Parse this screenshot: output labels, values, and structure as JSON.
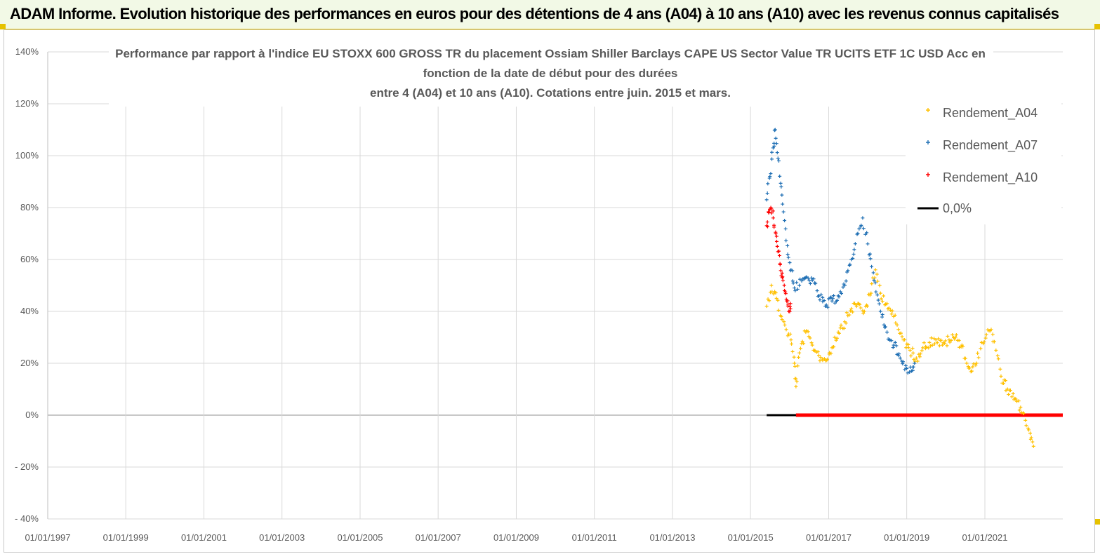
{
  "banner": {
    "title": "ADAM Informe. Evolution historique des performances en euros pour des détentions de 4 ans (A04) à 10 ans (A10) avec les revenus connus capitalisés"
  },
  "colors": {
    "banner_bg": "#f2f9e6",
    "accent_yellow": "#e6c200",
    "series_a04": "#ffc000",
    "series_a07": "#1f6fb4",
    "series_a10": "#ff0000",
    "zero_line": "#000000"
  },
  "chart_data": {
    "type": "scatter",
    "title_lines": [
      "Performance par rapport à l'indice EU STOXX 600 GROSS TR  du placement Ossiam Shiller Barclays CAPE US Sector Value TR UCITS ETF 1C USD Acc en",
      "fonction de la date de début pour des durées",
      "entre 4 (A04) et 10 ans (A10). Cotations entre juin. 2015 et mars."
    ],
    "xlabel": "",
    "ylabel": "",
    "x_range": [
      "1997-01-01",
      "2022-12-31"
    ],
    "x_ticks": [
      "01/01/1997",
      "01/01/1999",
      "01/01/2001",
      "01/01/2003",
      "01/01/2005",
      "01/01/2007",
      "01/01/2009",
      "01/01/2011",
      "01/01/2013",
      "01/01/2015",
      "01/01/2017",
      "01/01/2019",
      "01/01/2021"
    ],
    "y_range": [
      -40,
      140
    ],
    "y_ticks": [
      "- 40%",
      "- 20%",
      "0%",
      "20%",
      "40%",
      "60%",
      "80%",
      "100%",
      "120%",
      "140%"
    ],
    "grid": true,
    "legend_position": "top-right",
    "legend": [
      "Rendement_A04",
      "Rendement_A07",
      "Rendement_A10",
      "0,0%"
    ],
    "series": [
      {
        "name": "Rendement_A04",
        "marker": "+",
        "color": "#ffc000",
        "points": [
          [
            "2015-06-01",
            42
          ],
          [
            "2015-07-15",
            50
          ],
          [
            "2015-09-01",
            45
          ],
          [
            "2015-10-15",
            38
          ],
          [
            "2015-12-01",
            33
          ],
          [
            "2016-01-15",
            29
          ],
          [
            "2016-02-15",
            20
          ],
          [
            "2016-03-01",
            11
          ],
          [
            "2016-04-01",
            24
          ],
          [
            "2016-06-01",
            32
          ],
          [
            "2016-08-01",
            27
          ],
          [
            "2016-10-01",
            23
          ],
          [
            "2016-12-01",
            21
          ],
          [
            "2017-02-01",
            26
          ],
          [
            "2017-04-01",
            32
          ],
          [
            "2017-06-01",
            36
          ],
          [
            "2017-08-01",
            41
          ],
          [
            "2017-10-01",
            43
          ],
          [
            "2017-12-01",
            40
          ],
          [
            "2018-02-01",
            47
          ],
          [
            "2018-03-15",
            56
          ],
          [
            "2018-05-01",
            47
          ],
          [
            "2018-07-01",
            43
          ],
          [
            "2018-09-01",
            38
          ],
          [
            "2018-10-15",
            33
          ],
          [
            "2018-12-01",
            29
          ],
          [
            "2019-02-01",
            25
          ],
          [
            "2019-04-01",
            22
          ],
          [
            "2019-06-01",
            26
          ],
          [
            "2019-08-01",
            28
          ],
          [
            "2019-10-01",
            29
          ],
          [
            "2019-12-01",
            27
          ],
          [
            "2020-02-01",
            29
          ],
          [
            "2020-04-01",
            30
          ],
          [
            "2020-06-01",
            27
          ],
          [
            "2020-07-15",
            20
          ],
          [
            "2020-09-01",
            17
          ],
          [
            "2020-10-15",
            20
          ],
          [
            "2020-12-01",
            28
          ],
          [
            "2021-01-15",
            31
          ],
          [
            "2021-03-01",
            33
          ],
          [
            "2021-04-15",
            25
          ],
          [
            "2021-06-01",
            15
          ],
          [
            "2021-08-01",
            10
          ],
          [
            "2021-10-01",
            6
          ],
          [
            "2021-12-01",
            3
          ],
          [
            "2022-01-15",
            -2
          ],
          [
            "2022-03-01",
            -7
          ],
          [
            "2022-04-01",
            -12
          ]
        ]
      },
      {
        "name": "Rendement_A07",
        "marker": "+",
        "color": "#1f6fb4",
        "points": [
          [
            "2015-06-01",
            83
          ],
          [
            "2015-07-01",
            92
          ],
          [
            "2015-08-01",
            103
          ],
          [
            "2015-08-20",
            110
          ],
          [
            "2015-09-15",
            99
          ],
          [
            "2015-10-15",
            88
          ],
          [
            "2015-11-15",
            75
          ],
          [
            "2015-12-15",
            62
          ],
          [
            "2016-01-15",
            56
          ],
          [
            "2016-02-15",
            49
          ],
          [
            "2016-04-01",
            50
          ],
          [
            "2016-06-01",
            53
          ],
          [
            "2016-08-01",
            52
          ],
          [
            "2016-10-01",
            46
          ],
          [
            "2016-12-01",
            42
          ],
          [
            "2017-02-01",
            44
          ],
          [
            "2017-04-01",
            46
          ],
          [
            "2017-06-01",
            50
          ],
          [
            "2017-08-01",
            60
          ],
          [
            "2017-10-01",
            70
          ],
          [
            "2017-11-15",
            76
          ],
          [
            "2018-01-01",
            66
          ],
          [
            "2018-03-01",
            52
          ],
          [
            "2018-05-01",
            40
          ],
          [
            "2018-07-01",
            32
          ],
          [
            "2018-09-01",
            27
          ],
          [
            "2018-11-01",
            22
          ],
          [
            "2019-01-01",
            18
          ],
          [
            "2019-02-15",
            17
          ],
          [
            "2019-03-15",
            20
          ]
        ]
      },
      {
        "name": "Rendement_A10",
        "marker": "+",
        "color": "#ff0000",
        "points": [
          [
            "2015-06-01",
            73
          ],
          [
            "2015-06-20",
            78
          ],
          [
            "2015-07-10",
            80
          ],
          [
            "2015-08-01",
            76
          ],
          [
            "2015-08-25",
            70
          ],
          [
            "2015-09-15",
            63
          ],
          [
            "2015-10-05",
            58
          ],
          [
            "2015-10-25",
            53
          ],
          [
            "2015-11-15",
            48
          ],
          [
            "2015-12-05",
            44
          ],
          [
            "2015-12-25",
            40
          ],
          [
            "2016-01-10",
            43
          ]
        ]
      },
      {
        "name": "0,0%",
        "type": "line",
        "color": "#000000",
        "points": [
          [
            "2015-06-01",
            0
          ],
          [
            "2022-12-31",
            0
          ]
        ]
      },
      {
        "name": "",
        "type": "line",
        "color": "#ff0000",
        "points": [
          [
            "2016-03-01",
            0
          ],
          [
            "2022-12-31",
            0
          ]
        ]
      }
    ]
  }
}
